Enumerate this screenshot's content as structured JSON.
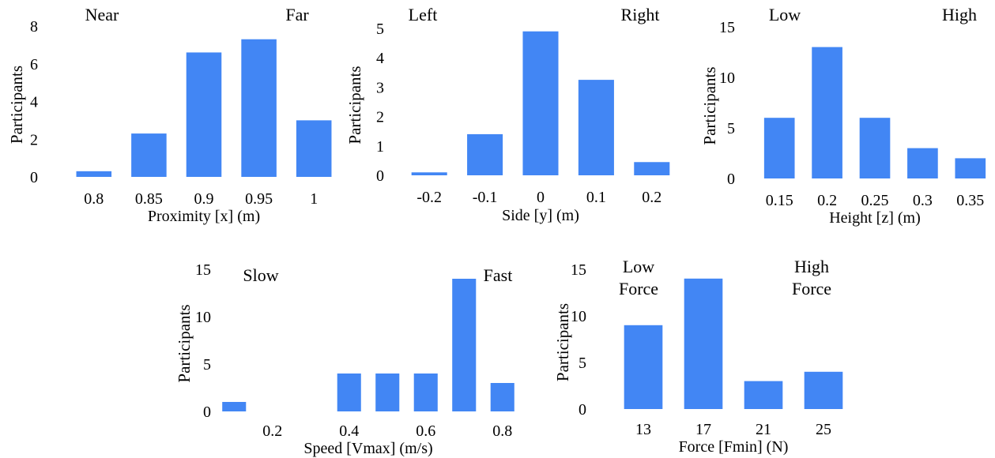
{
  "colors": {
    "bar": "#4286f4",
    "text": "#000000",
    "background": "#ffffff"
  },
  "chart_data": [
    {
      "id": "proximity",
      "type": "bar",
      "categories": [
        "0.8",
        "0.85",
        "0.9",
        "0.95",
        "1"
      ],
      "values": [
        0.3,
        2.3,
        6.6,
        7.3,
        3.0
      ],
      "xlabel": "Proximity [x] (m)",
      "ylabel": "Participants",
      "ylim": [
        0,
        8
      ],
      "yticks": [
        0,
        2,
        4,
        6,
        8
      ],
      "annotations": [
        "Near",
        "Far"
      ],
      "grid": false
    },
    {
      "id": "side",
      "type": "bar",
      "categories": [
        "-0.2",
        "-0.1",
        "0",
        "0.1",
        "0.2"
      ],
      "values": [
        0.1,
        1.4,
        4.9,
        3.25,
        0.45
      ],
      "xlabel": "Side [y] (m)",
      "ylabel": "Participants",
      "ylim": [
        0,
        5
      ],
      "yticks": [
        0,
        1,
        2,
        3,
        4,
        5
      ],
      "annotations": [
        "Left",
        "Right"
      ],
      "grid": false
    },
    {
      "id": "height",
      "type": "bar",
      "categories": [
        "0.15",
        "0.2",
        "0.25",
        "0.3",
        "0.35"
      ],
      "values": [
        6,
        13,
        6,
        3,
        2
      ],
      "xlabel": "Height [z] (m)",
      "ylabel": "Participants",
      "ylim": [
        0,
        15
      ],
      "yticks": [
        0,
        5,
        10,
        15
      ],
      "annotations": [
        "Low",
        "High"
      ],
      "grid": false
    },
    {
      "id": "speed",
      "type": "bar",
      "x": [
        0.1,
        0.2,
        0.3,
        0.4,
        0.5,
        0.6,
        0.7,
        0.8
      ],
      "values": [
        1,
        0,
        0,
        4,
        4,
        4,
        14,
        3
      ],
      "xticks": [
        0.2,
        0.4,
        0.6,
        0.8
      ],
      "xticklabels": [
        "0.2",
        "0.4",
        "0.6",
        "0.8"
      ],
      "xlabel": "Speed [Vmax] (m/s)",
      "ylabel": "Participants",
      "ylim": [
        0,
        15
      ],
      "yticks": [
        0,
        5,
        10,
        15
      ],
      "annotations": [
        "Slow",
        "Fast"
      ],
      "grid": false
    },
    {
      "id": "force",
      "type": "bar",
      "categories": [
        "13",
        "17",
        "21",
        "25"
      ],
      "values": [
        9,
        14,
        3,
        4
      ],
      "xlabel": "Force [Fmin] (N)",
      "ylabel": "Participants",
      "ylim": [
        0,
        15
      ],
      "yticks": [
        0,
        5,
        10,
        15
      ],
      "annotations": [
        "Low\nForce",
        "High\nForce"
      ],
      "grid": false
    }
  ]
}
